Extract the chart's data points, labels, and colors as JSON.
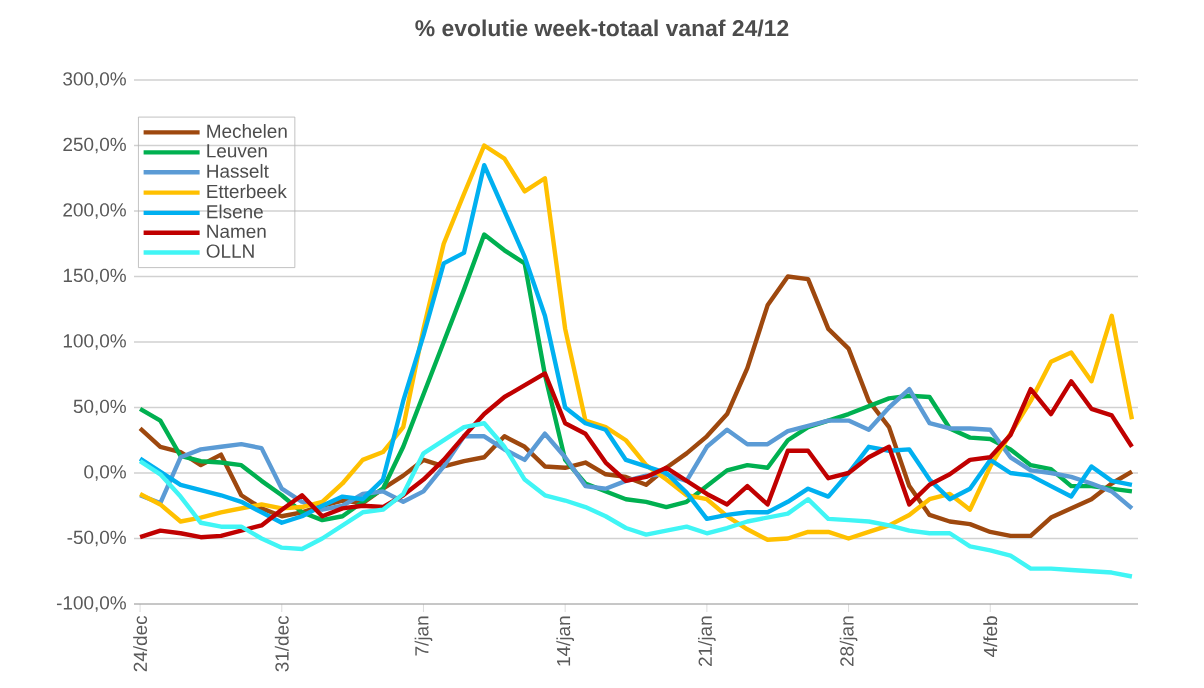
{
  "chart_data": {
    "type": "line",
    "title": "% evolutie week-totaal  vanaf 24/12",
    "categories": [
      "24/dec",
      null,
      null,
      null,
      null,
      null,
      null,
      "31/dec",
      null,
      null,
      null,
      null,
      null,
      null,
      "7/jan",
      null,
      null,
      null,
      null,
      null,
      null,
      "14/jan",
      null,
      null,
      null,
      null,
      null,
      null,
      "21/jan",
      null,
      null,
      null,
      null,
      null,
      null,
      "28/jan",
      null,
      null,
      null,
      null,
      null,
      null,
      "4/feb",
      null,
      null,
      null,
      null,
      null,
      null,
      null
    ],
    "series": [
      {
        "name": "Mechelen",
        "color": "#9e480e",
        "values": [
          34,
          20,
          16,
          6,
          14,
          -17,
          -27,
          -33,
          -30,
          -25,
          -21,
          -23,
          -12,
          -2,
          10,
          5,
          9,
          12,
          28,
          20,
          5,
          4,
          8,
          -1,
          -3,
          -9,
          4,
          15,
          28,
          45,
          80,
          128,
          150,
          148,
          110,
          95,
          55,
          35,
          -10,
          -32,
          -37,
          -39,
          -45,
          -48,
          -48,
          -34,
          -27,
          -20,
          -8,
          1
        ]
      },
      {
        "name": "Leuven",
        "color": "#00b050",
        "values": [
          49,
          40,
          13,
          9,
          8,
          6,
          -6,
          -17,
          -30,
          -36,
          -33,
          -22,
          -12,
          20,
          60,
          100,
          140,
          182,
          170,
          160,
          75,
          10,
          -8,
          -14,
          -20,
          -22,
          -26,
          -22,
          -10,
          2,
          6,
          4,
          25,
          35,
          40,
          45,
          51,
          57,
          59,
          58,
          34,
          27,
          26,
          18,
          6,
          3,
          -10,
          -10,
          -12,
          -14
        ]
      },
      {
        "name": "Hasselt",
        "color": "#5b9bd5",
        "values": [
          -17,
          -23,
          12,
          18,
          20,
          22,
          19,
          -12,
          -22,
          -28,
          -25,
          -16,
          -14,
          -22,
          -14,
          5,
          28,
          28,
          18,
          10,
          30,
          12,
          -10,
          -12,
          -6,
          -2,
          -1,
          -6,
          20,
          33,
          22,
          22,
          32,
          36,
          40,
          40,
          33,
          50,
          64,
          38,
          34,
          34,
          33,
          12,
          2,
          0,
          -3,
          -8,
          -14,
          -27
        ]
      },
      {
        "name": "Etterbeek",
        "color": "#ffc000",
        "values": [
          -16,
          -24,
          -37,
          -34,
          -30,
          -27,
          -24,
          -27,
          -26,
          -22,
          -8,
          10,
          16,
          35,
          110,
          175,
          213,
          250,
          240,
          215,
          225,
          110,
          40,
          35,
          25,
          6,
          -5,
          -17,
          -20,
          -33,
          -43,
          -51,
          -50,
          -45,
          -45,
          -50,
          -45,
          -40,
          -32,
          -20,
          -16,
          -28,
          5,
          30,
          55,
          85,
          92,
          70,
          120,
          41
        ]
      },
      {
        "name": "Elsene",
        "color": "#00b0f0",
        "values": [
          11,
          1,
          -9,
          -13,
          -17,
          -22,
          -30,
          -38,
          -33,
          -25,
          -18,
          -20,
          -5,
          55,
          105,
          160,
          168,
          235,
          200,
          165,
          120,
          50,
          38,
          33,
          10,
          5,
          0,
          -15,
          -35,
          -32,
          -30,
          -30,
          -22,
          -12,
          -18,
          0,
          20,
          17,
          18,
          -5,
          -20,
          -12,
          10,
          0,
          -2,
          -10,
          -18,
          5,
          -6,
          -9
        ]
      },
      {
        "name": "Namen",
        "color": "#c00000",
        "values": [
          -49,
          -44,
          -46,
          -49,
          -48,
          -44,
          -40,
          -28,
          -17,
          -33,
          -27,
          -25,
          -26,
          -17,
          -5,
          10,
          28,
          45,
          58,
          67,
          76,
          38,
          30,
          8,
          -6,
          -3,
          4,
          -6,
          -16,
          -24,
          -10,
          -24,
          17,
          17,
          -4,
          0,
          12,
          20,
          -24,
          -9,
          -1,
          10,
          12,
          29,
          64,
          45,
          70,
          49,
          44,
          20
        ]
      },
      {
        "name": "OLLN",
        "color": "#40f5f5",
        "values": [
          9,
          -1,
          -18,
          -38,
          -41,
          -41,
          -50,
          -57,
          -58,
          -50,
          -40,
          -30,
          -28,
          -16,
          15,
          25,
          35,
          38,
          20,
          -5,
          -17,
          -21,
          -26,
          -33,
          -42,
          -47,
          -44,
          -41,
          -46,
          -42,
          -37,
          -34,
          -31,
          -20,
          -35,
          -36,
          -37,
          -40,
          -44,
          -46,
          -46,
          -56,
          -59,
          -63,
          -73,
          -73,
          -74,
          -75,
          -76,
          -79
        ]
      }
    ],
    "ylim": [
      -100,
      300
    ],
    "yticks": [
      {
        "value": -100,
        "label": "-100,0%"
      },
      {
        "value": -50,
        "label": "-50,0%"
      },
      {
        "value": 0,
        "label": "0,0%"
      },
      {
        "value": 50,
        "label": "50,0%"
      },
      {
        "value": 100,
        "label": "100,0%"
      },
      {
        "value": 150,
        "label": "150,0%"
      },
      {
        "value": 200,
        "label": "200,0%"
      },
      {
        "value": 250,
        "label": "250,0%"
      },
      {
        "value": 300,
        "label": "300,0%"
      }
    ],
    "grid": "y",
    "legend": "top left",
    "marker": "none",
    "line_style": "solid"
  }
}
